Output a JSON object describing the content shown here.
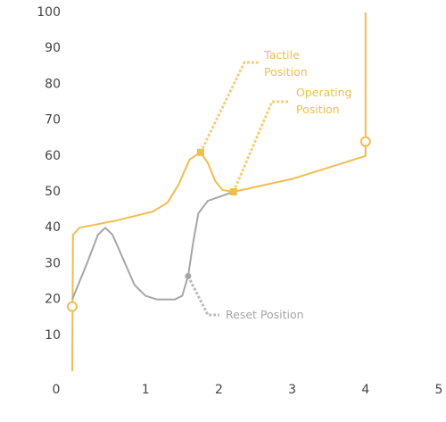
{
  "chart_data": {
    "type": "line",
    "xlim": [
      0,
      5
    ],
    "xticks": [
      0,
      1,
      2,
      3,
      4,
      5
    ],
    "ylim": [
      0,
      100
    ],
    "yticks": [
      10,
      20,
      30,
      40,
      50,
      60,
      70,
      80,
      90,
      100
    ],
    "series": [
      {
        "color": "#f0bd4f",
        "x": [
          0,
          0.01,
          0.1,
          0.6,
          1.1,
          1.3,
          1.45,
          1.6,
          1.75,
          1.85,
          1.95,
          2.05,
          2.2,
          3,
          4,
          4
        ],
        "values": [
          0,
          38,
          40,
          42,
          44.5,
          47,
          52,
          59,
          61,
          58,
          53,
          50.5,
          50,
          53.6,
          60,
          100
        ]
      },
      {
        "color": "#a6a6a6",
        "x": [
          0,
          0.2,
          0.35,
          0.45,
          0.55,
          0.7,
          0.85,
          1.0,
          1.15,
          1.4,
          1.5,
          1.58,
          1.65,
          1.72,
          1.85,
          2.2
        ],
        "values": [
          20,
          30,
          38,
          40,
          38,
          31,
          24,
          21,
          20,
          20,
          21,
          26.5,
          36,
          44,
          47.5,
          50
        ]
      }
    ],
    "markers": [
      {
        "x": 0,
        "y": 18,
        "shape": "circle",
        "color": "#f0bd4f"
      },
      {
        "x": 4,
        "y": 64,
        "shape": "circle",
        "color": "#f0bd4f"
      },
      {
        "x": 1.75,
        "y": 61,
        "shape": "square",
        "color": "#f0bd4f"
      },
      {
        "x": 2.2,
        "y": 50,
        "shape": "square",
        "color": "#f0bd4f"
      },
      {
        "x": 1.58,
        "y": 26.5,
        "shape": "dot",
        "color": "#a6a6a6"
      }
    ],
    "annotations": [
      {
        "label": [
          "Tactile",
          "Position"
        ],
        "color": "#f0bd4f"
      },
      {
        "label": [
          "Operating",
          "Position"
        ],
        "color": "#f0bd4f"
      },
      {
        "label": [
          "Reset Position"
        ],
        "color": "#a6a6a6"
      }
    ]
  }
}
